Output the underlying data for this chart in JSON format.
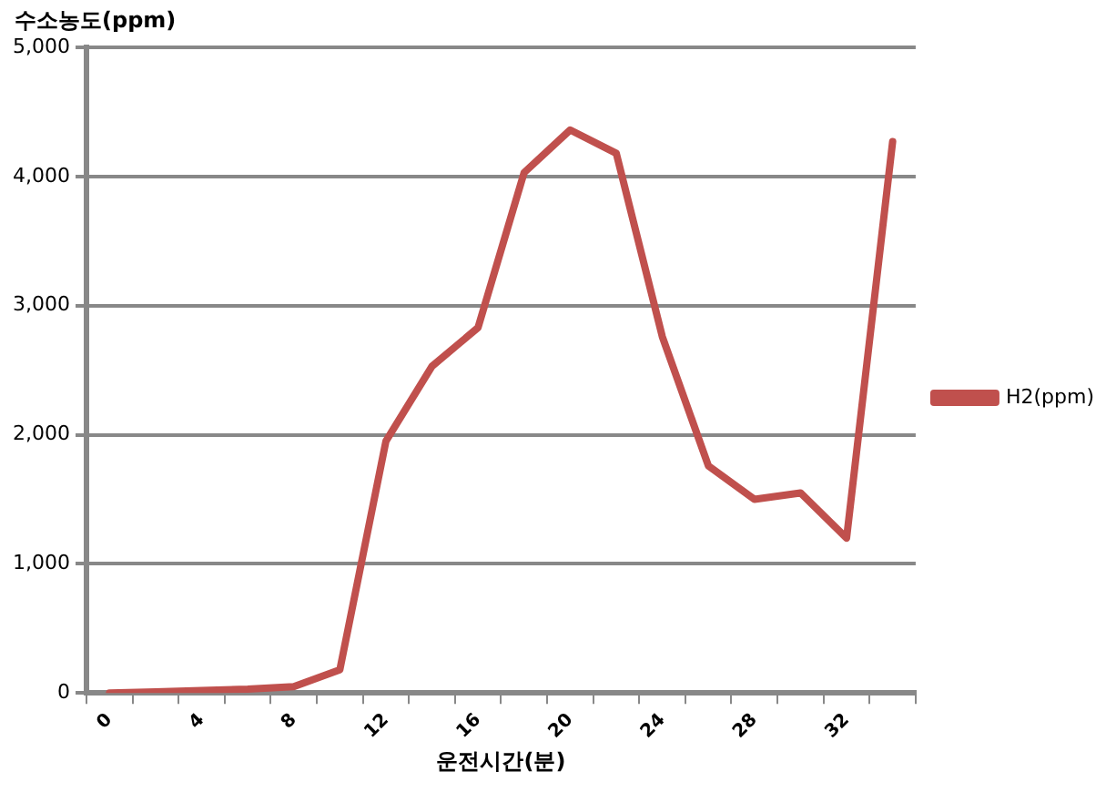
{
  "chart_data": {
    "type": "line",
    "xlabel": "운전시간(분)",
    "ylabel": "수소농도(ppm)",
    "categories": [
      "0",
      null,
      "4",
      null,
      "8",
      null,
      "12",
      null,
      "16",
      null,
      "20",
      null,
      "24",
      null,
      "28",
      null,
      "32",
      null
    ],
    "series": [
      {
        "name": "H2(ppm)",
        "color": "#c0504d",
        "values": [
          0,
          10,
          20,
          30,
          50,
          180,
          1950,
          2530,
          2830,
          4030,
          4360,
          4180,
          2760,
          1760,
          1500,
          1550,
          1200,
          4270
        ]
      }
    ],
    "ylim": [
      0,
      5000
    ],
    "yticks": [
      {
        "value": 0,
        "label": "0"
      },
      {
        "value": 1000,
        "label": "1,000"
      },
      {
        "value": 2000,
        "label": "2,000"
      },
      {
        "value": 3000,
        "label": "3,000"
      },
      {
        "value": 4000,
        "label": "4,000"
      },
      {
        "value": 5000,
        "label": "5,000"
      }
    ],
    "grid": "y",
    "legend": "right",
    "marker": "none"
  }
}
